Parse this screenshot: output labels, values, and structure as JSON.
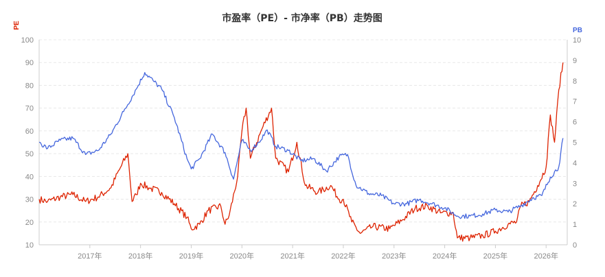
{
  "chart_data": {
    "type": "line",
    "title": "市盈率（PE）- 市净率（PB）走势图",
    "left_axis": {
      "label": "PE",
      "ylim": [
        10,
        100
      ],
      "ticks": [
        "10",
        "20",
        "30",
        "40",
        "50",
        "60",
        "70",
        "80",
        "90",
        "100"
      ]
    },
    "right_axis": {
      "label": "PB",
      "ylim": [
        0,
        10
      ],
      "ticks": [
        "0",
        "1",
        "2",
        "3",
        "4",
        "5",
        "6",
        "7",
        "8",
        "9",
        "10"
      ]
    },
    "x_ticks": [
      "2017年",
      "2018年",
      "2019年",
      "2020年",
      "2021年",
      "2022年",
      "2023年",
      "2024年",
      "2025年",
      "2026年"
    ],
    "xlim": [
      "2016-01",
      "2026-06"
    ],
    "grid": true,
    "series": [
      {
        "name": "PE",
        "color": "#dd2200",
        "axis": "left",
        "points": [
          [
            "2016-01",
            30
          ],
          [
            "2016-03",
            29
          ],
          [
            "2016-06",
            31
          ],
          [
            "2016-09",
            32
          ],
          [
            "2016-12",
            29
          ],
          [
            "2017-03",
            31
          ],
          [
            "2017-06",
            35
          ],
          [
            "2017-08",
            43
          ],
          [
            "2017-10",
            50
          ],
          [
            "2017-11",
            29
          ],
          [
            "2017-12",
            32
          ],
          [
            "2018-01",
            37
          ],
          [
            "2018-03",
            35
          ],
          [
            "2018-06",
            33
          ],
          [
            "2018-09",
            28
          ],
          [
            "2018-12",
            22
          ],
          [
            "2019-01",
            17
          ],
          [
            "2019-03",
            19
          ],
          [
            "2019-05",
            25
          ],
          [
            "2019-08",
            27
          ],
          [
            "2019-09",
            19
          ],
          [
            "2019-10",
            23
          ],
          [
            "2019-12",
            40
          ],
          [
            "2020-01",
            60
          ],
          [
            "2020-02",
            70
          ],
          [
            "2020-03",
            48
          ],
          [
            "2020-06",
            62
          ],
          [
            "2020-08",
            70
          ],
          [
            "2020-09",
            48
          ],
          [
            "2020-12",
            42
          ],
          [
            "2021-02",
            55
          ],
          [
            "2021-04",
            36
          ],
          [
            "2021-07",
            33
          ],
          [
            "2021-10",
            36
          ],
          [
            "2021-12",
            30
          ],
          [
            "2022-01",
            30
          ],
          [
            "2022-03",
            20
          ],
          [
            "2022-05",
            15
          ],
          [
            "2022-08",
            18
          ],
          [
            "2022-12",
            17
          ],
          [
            "2023-03",
            21
          ],
          [
            "2023-06",
            26
          ],
          [
            "2023-09",
            27
          ],
          [
            "2023-12",
            24
          ],
          [
            "2024-03",
            24
          ],
          [
            "2024-04",
            13
          ],
          [
            "2024-07",
            13
          ],
          [
            "2024-10",
            14
          ],
          [
            "2025-01",
            16
          ],
          [
            "2025-04",
            19
          ],
          [
            "2025-06",
            20
          ],
          [
            "2025-07",
            27
          ],
          [
            "2025-09",
            29
          ],
          [
            "2025-11",
            36
          ],
          [
            "2026-01",
            44
          ],
          [
            "2026-02",
            67
          ],
          [
            "2026-03",
            55
          ],
          [
            "2026-04",
            78
          ],
          [
            "2026-05",
            90
          ]
        ]
      },
      {
        "name": "PB",
        "color": "#4466dd",
        "axis": "right",
        "points": [
          [
            "2016-01",
            5.0
          ],
          [
            "2016-03",
            4.7
          ],
          [
            "2016-06",
            5.1
          ],
          [
            "2016-09",
            5.2
          ],
          [
            "2016-12",
            4.4
          ],
          [
            "2017-03",
            4.6
          ],
          [
            "2017-06",
            5.4
          ],
          [
            "2017-09",
            6.5
          ],
          [
            "2017-12",
            7.6
          ],
          [
            "2018-02",
            8.4
          ],
          [
            "2018-04",
            8.0
          ],
          [
            "2018-06",
            7.6
          ],
          [
            "2018-09",
            6.2
          ],
          [
            "2018-12",
            4.2
          ],
          [
            "2019-01",
            3.7
          ],
          [
            "2019-03",
            4.2
          ],
          [
            "2019-06",
            5.4
          ],
          [
            "2019-09",
            4.5
          ],
          [
            "2019-11",
            3.2
          ],
          [
            "2020-01",
            5.1
          ],
          [
            "2020-03",
            4.6
          ],
          [
            "2020-05",
            5.0
          ],
          [
            "2020-07",
            5.6
          ],
          [
            "2020-09",
            4.8
          ],
          [
            "2020-12",
            4.6
          ],
          [
            "2021-03",
            4.1
          ],
          [
            "2021-06",
            4.2
          ],
          [
            "2021-09",
            3.6
          ],
          [
            "2021-12",
            4.3
          ],
          [
            "2022-02",
            4.4
          ],
          [
            "2022-04",
            2.9
          ],
          [
            "2022-07",
            2.5
          ],
          [
            "2022-10",
            2.4
          ],
          [
            "2023-01",
            2.0
          ],
          [
            "2023-04",
            2.0
          ],
          [
            "2023-07",
            2.2
          ],
          [
            "2023-10",
            2.0
          ],
          [
            "2024-01",
            1.8
          ],
          [
            "2024-04",
            1.4
          ],
          [
            "2024-07",
            1.4
          ],
          [
            "2024-10",
            1.5
          ],
          [
            "2025-01",
            1.7
          ],
          [
            "2025-04",
            1.6
          ],
          [
            "2025-07",
            1.9
          ],
          [
            "2025-10",
            2.3
          ],
          [
            "2025-12",
            2.4
          ],
          [
            "2026-02",
            3.3
          ],
          [
            "2026-04",
            3.8
          ],
          [
            "2026-05",
            5.2
          ]
        ]
      }
    ]
  }
}
